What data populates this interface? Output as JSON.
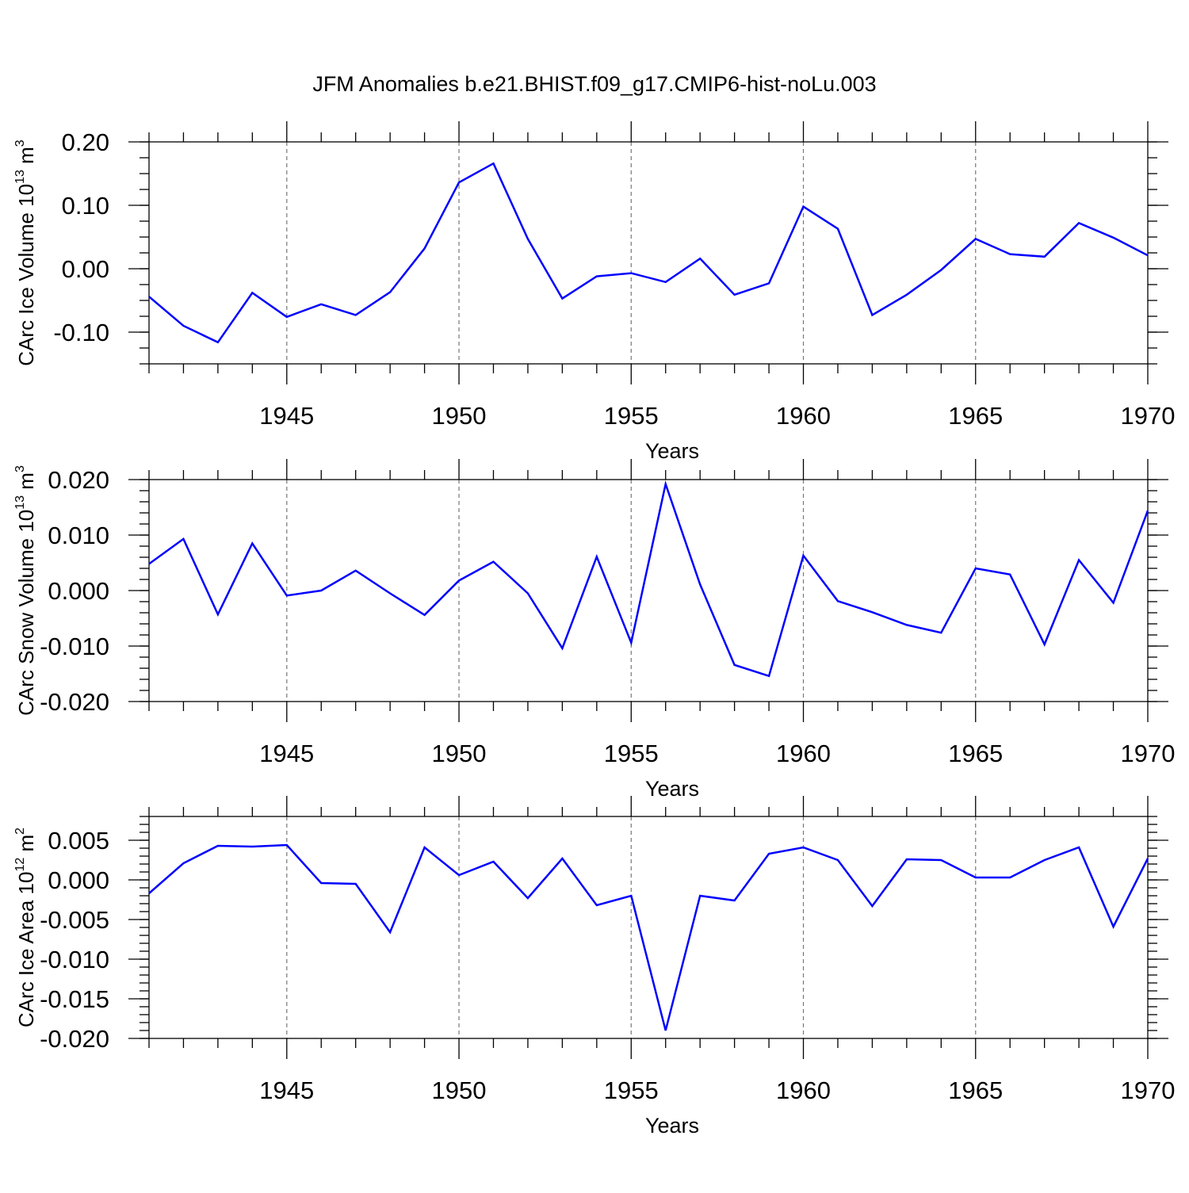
{
  "title": "JFM Anomalies b.e21.BHIST.f09_g17.CMIP6-hist-noLu.003",
  "line_color": "#0000ff",
  "chart_data": [
    {
      "type": "line",
      "ylabel": "CArc Ice Volume 10^13 m^3",
      "ylabel_text": "CArc Ice Volume 10",
      "ylabel_exp": "13",
      "ylabel_unit": " m",
      "ylabel_unit_exp": "3",
      "xlabel": "Years",
      "xlim": [
        1941,
        1970
      ],
      "ylim": [
        -0.15,
        0.2
      ],
      "yticks": [
        -0.1,
        0.0,
        0.1,
        0.2
      ],
      "ytick_labels": [
        "-0.10",
        "0.00",
        "0.10",
        "0.20"
      ],
      "xticks": [
        1945,
        1950,
        1955,
        1960,
        1965,
        1970
      ],
      "xtick_labels": [
        "1945",
        "1950",
        "1955",
        "1960",
        "1965",
        "1970"
      ],
      "grid": "vertical dashed at major x ticks",
      "x": [
        1941,
        1942,
        1943,
        1944,
        1945,
        1946,
        1947,
        1948,
        1949,
        1950,
        1951,
        1952,
        1953,
        1954,
        1955,
        1956,
        1957,
        1958,
        1959,
        1960,
        1961,
        1962,
        1963,
        1964,
        1965,
        1966,
        1967,
        1968,
        1969,
        1970
      ],
      "y": [
        -0.044,
        -0.09,
        -0.116,
        -0.038,
        -0.076,
        -0.056,
        -0.073,
        -0.037,
        0.032,
        0.136,
        0.166,
        0.047,
        -0.047,
        -0.012,
        -0.007,
        -0.021,
        0.016,
        -0.041,
        -0.023,
        0.098,
        0.063,
        -0.073,
        -0.041,
        -0.002,
        0.047,
        0.023,
        0.019,
        0.072,
        0.049,
        0.021
      ]
    },
    {
      "type": "line",
      "ylabel": "CArc Snow Volume 10^13 m^3",
      "ylabel_text": "CArc Snow Volume 10",
      "ylabel_exp": "13",
      "ylabel_unit": " m",
      "ylabel_unit_exp": "3",
      "xlabel": "Years",
      "xlim": [
        1941,
        1970
      ],
      "ylim": [
        -0.02,
        0.02
      ],
      "yticks": [
        -0.02,
        -0.01,
        0.0,
        0.01,
        0.02
      ],
      "ytick_labels": [
        "-0.020",
        "-0.010",
        "0.000",
        "0.010",
        "0.020"
      ],
      "xticks": [
        1945,
        1950,
        1955,
        1960,
        1965,
        1970
      ],
      "xtick_labels": [
        "1945",
        "1950",
        "1955",
        "1960",
        "1965",
        "1970"
      ],
      "grid": "vertical dashed at major x ticks",
      "x": [
        1941,
        1942,
        1943,
        1944,
        1945,
        1946,
        1947,
        1948,
        1949,
        1950,
        1951,
        1952,
        1953,
        1954,
        1955,
        1956,
        1957,
        1958,
        1959,
        1960,
        1961,
        1962,
        1963,
        1964,
        1965,
        1966,
        1967,
        1968,
        1969,
        1970
      ],
      "y": [
        0.0048,
        0.0093,
        -0.0043,
        0.0085,
        -0.0009,
        0.0,
        0.0036,
        -0.0005,
        -0.0044,
        0.0018,
        0.0052,
        -0.0005,
        -0.0104,
        0.0061,
        -0.0094,
        0.0192,
        0.0011,
        -0.0134,
        -0.0154,
        0.0063,
        -0.0019,
        -0.0039,
        -0.0062,
        -0.0076,
        0.004,
        0.0029,
        -0.0097,
        0.0055,
        -0.0022,
        0.0144
      ]
    },
    {
      "type": "line",
      "ylabel": "CArc Ice Area 10^12 m^2",
      "ylabel_text": "CArc Ice Area 10",
      "ylabel_exp": "12",
      "ylabel_unit": " m",
      "ylabel_unit_exp": "2",
      "xlabel": "Years",
      "xlim": [
        1941,
        1970
      ],
      "ylim": [
        -0.02,
        0.008
      ],
      "yticks": [
        -0.02,
        -0.015,
        -0.01,
        -0.005,
        0.0,
        0.005
      ],
      "ytick_labels": [
        "-0.020",
        "-0.015",
        "-0.010",
        "-0.005",
        "0.000",
        "0.005"
      ],
      "xticks": [
        1945,
        1950,
        1955,
        1960,
        1965,
        1970
      ],
      "xtick_labels": [
        "1945",
        "1950",
        "1955",
        "1960",
        "1965",
        "1970"
      ],
      "grid": "vertical dashed at major x ticks",
      "x": [
        1941,
        1942,
        1943,
        1944,
        1945,
        1946,
        1947,
        1948,
        1949,
        1950,
        1951,
        1952,
        1953,
        1954,
        1955,
        1956,
        1957,
        1958,
        1959,
        1960,
        1961,
        1962,
        1963,
        1964,
        1965,
        1966,
        1967,
        1968,
        1969,
        1970
      ],
      "y": [
        -0.0017,
        0.0021,
        0.0043,
        0.0042,
        0.0044,
        -0.0004,
        -0.0005,
        -0.0066,
        0.0041,
        0.0006,
        0.0023,
        -0.0023,
        0.0027,
        -0.0032,
        -0.002,
        -0.019,
        -0.002,
        -0.0026,
        0.0033,
        0.0041,
        0.0025,
        -0.0033,
        0.0026,
        0.0025,
        0.0003,
        0.0003,
        0.0025,
        0.0041,
        -0.0059,
        0.0027
      ]
    }
  ]
}
